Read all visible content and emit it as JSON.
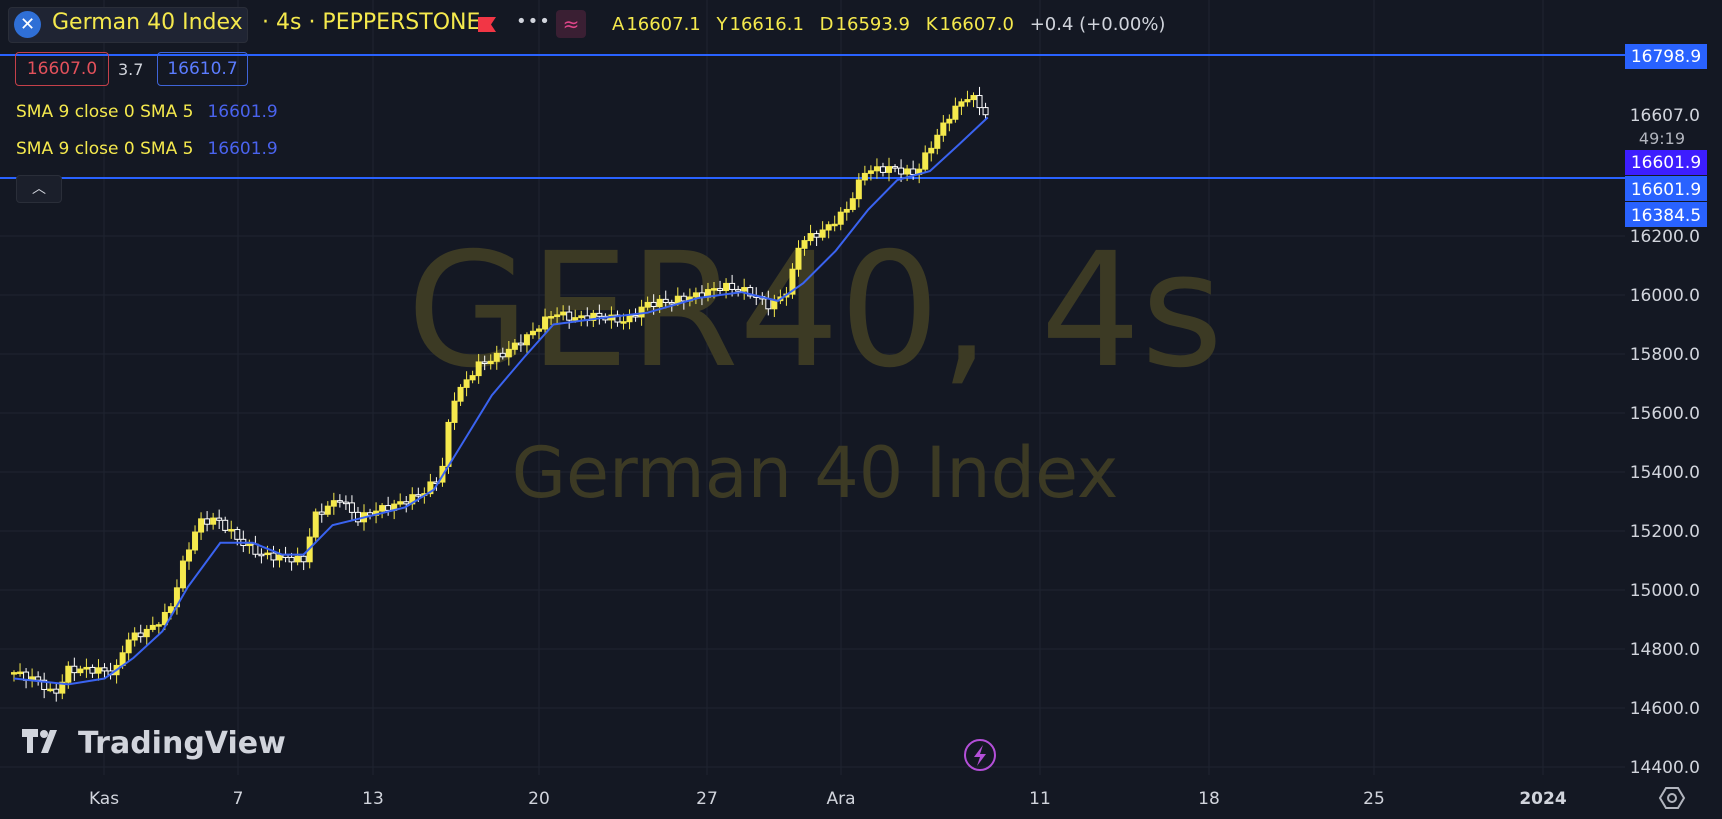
{
  "header": {
    "symbol_title": "German 40 Index",
    "symbol_rest": "· 4s · PEPPERSTONE",
    "ohlc": [
      {
        "key": "A",
        "value": "16607.1"
      },
      {
        "key": "Y",
        "value": "16616.1"
      },
      {
        "key": "D",
        "value": "16593.9"
      },
      {
        "key": "K",
        "value": "16607.0"
      }
    ],
    "change": "+0.4 (+0.00%)"
  },
  "trade": {
    "bid": "16607.0",
    "spread": "3.7",
    "ask": "16610.7"
  },
  "indicators": [
    {
      "label": "SMA 9 close 0 SMA 5",
      "value": "16601.9"
    },
    {
      "label": "SMA 9 close 0 SMA 5",
      "value": "16601.9"
    }
  ],
  "watermark": {
    "symbol": "GER40, 4s",
    "name": "German 40 Index"
  },
  "branding": {
    "logo_text": "TradingView"
  },
  "price_labels": {
    "line_top": "16798.9",
    "last": "16607.0",
    "countdown": "49:19",
    "sma_a": "16601.9",
    "sma_b": "16601.9",
    "line_bottom": "16384.5"
  },
  "colors": {
    "background": "#141823",
    "candle": "#f5e94d",
    "sma": "#3a63f0",
    "hline": "#2962ff",
    "grid": "#1f2430",
    "text": "#d1d4dc"
  },
  "icons": [
    "close-icon",
    "flag-icon",
    "more-icon",
    "wave-icon",
    "chevron-up-icon",
    "lightning-icon",
    "settings-icon"
  ],
  "chart_data": {
    "type": "candlestick",
    "y_axis_ticks": [
      16200,
      16000,
      15800,
      15600,
      15400,
      15200,
      15000,
      14800,
      14600,
      14400
    ],
    "ylim": [
      14400,
      16900
    ],
    "x_axis_ticks": [
      "Kas",
      "7",
      "13",
      "20",
      "27",
      "Ara",
      "11",
      "18",
      "25",
      "2024"
    ],
    "horizontal_lines": [
      16798.9,
      16384.5
    ],
    "close_path": [
      {
        "x": 0.0,
        "y": 14720
      },
      {
        "x": 0.7,
        "y": 14690
      },
      {
        "x": 1.1,
        "y": 14640
      },
      {
        "x": 1.5,
        "y": 14730
      },
      {
        "x": 2.2,
        "y": 14730
      },
      {
        "x": 2.8,
        "y": 14720
      },
      {
        "x": 3.1,
        "y": 14830
      },
      {
        "x": 3.8,
        "y": 14870
      },
      {
        "x": 4.3,
        "y": 14930
      },
      {
        "x": 4.7,
        "y": 15100
      },
      {
        "x": 5.1,
        "y": 15230
      },
      {
        "x": 5.6,
        "y": 15240
      },
      {
        "x": 6.3,
        "y": 15160
      },
      {
        "x": 6.8,
        "y": 15120
      },
      {
        "x": 7.4,
        "y": 15110
      },
      {
        "x": 8.0,
        "y": 15100
      },
      {
        "x": 8.3,
        "y": 15250
      },
      {
        "x": 9.0,
        "y": 15310
      },
      {
        "x": 9.5,
        "y": 15240
      },
      {
        "x": 10.0,
        "y": 15270
      },
      {
        "x": 10.6,
        "y": 15290
      },
      {
        "x": 11.3,
        "y": 15330
      },
      {
        "x": 11.8,
        "y": 15390
      },
      {
        "x": 12.1,
        "y": 15640
      },
      {
        "x": 12.8,
        "y": 15760
      },
      {
        "x": 13.5,
        "y": 15800
      },
      {
        "x": 14.2,
        "y": 15860
      },
      {
        "x": 14.9,
        "y": 15940
      },
      {
        "x": 15.5,
        "y": 15920
      },
      {
        "x": 16.1,
        "y": 15930
      },
      {
        "x": 16.9,
        "y": 15910
      },
      {
        "x": 17.5,
        "y": 15970
      },
      {
        "x": 18.2,
        "y": 15980
      },
      {
        "x": 18.9,
        "y": 16000
      },
      {
        "x": 19.6,
        "y": 16030
      },
      {
        "x": 20.3,
        "y": 16010
      },
      {
        "x": 20.9,
        "y": 15960
      },
      {
        "x": 21.4,
        "y": 16020
      },
      {
        "x": 21.7,
        "y": 16180
      },
      {
        "x": 22.4,
        "y": 16220
      },
      {
        "x": 23.0,
        "y": 16290
      },
      {
        "x": 23.5,
        "y": 16420
      },
      {
        "x": 24.2,
        "y": 16430
      },
      {
        "x": 24.9,
        "y": 16410
      },
      {
        "x": 25.4,
        "y": 16520
      },
      {
        "x": 25.9,
        "y": 16620
      },
      {
        "x": 26.4,
        "y": 16680
      },
      {
        "x": 26.9,
        "y": 16607
      }
    ],
    "sma_path": [
      {
        "x": 0.0,
        "y": 14700
      },
      {
        "x": 1.5,
        "y": 14680
      },
      {
        "x": 2.5,
        "y": 14700
      },
      {
        "x": 3.3,
        "y": 14770
      },
      {
        "x": 4.1,
        "y": 14860
      },
      {
        "x": 4.8,
        "y": 15010
      },
      {
        "x": 5.7,
        "y": 15160
      },
      {
        "x": 6.6,
        "y": 15160
      },
      {
        "x": 7.4,
        "y": 15120
      },
      {
        "x": 8.0,
        "y": 15120
      },
      {
        "x": 8.8,
        "y": 15220
      },
      {
        "x": 9.8,
        "y": 15250
      },
      {
        "x": 10.8,
        "y": 15280
      },
      {
        "x": 11.6,
        "y": 15340
      },
      {
        "x": 12.3,
        "y": 15480
      },
      {
        "x": 13.2,
        "y": 15660
      },
      {
        "x": 14.1,
        "y": 15790
      },
      {
        "x": 14.9,
        "y": 15900
      },
      {
        "x": 16.1,
        "y": 15920
      },
      {
        "x": 17.5,
        "y": 15940
      },
      {
        "x": 18.9,
        "y": 15990
      },
      {
        "x": 20.1,
        "y": 16010
      },
      {
        "x": 21.1,
        "y": 15980
      },
      {
        "x": 21.8,
        "y": 16040
      },
      {
        "x": 22.7,
        "y": 16150
      },
      {
        "x": 23.6,
        "y": 16290
      },
      {
        "x": 24.4,
        "y": 16390
      },
      {
        "x": 25.3,
        "y": 16420
      },
      {
        "x": 26.1,
        "y": 16510
      },
      {
        "x": 26.9,
        "y": 16601.9
      }
    ]
  }
}
